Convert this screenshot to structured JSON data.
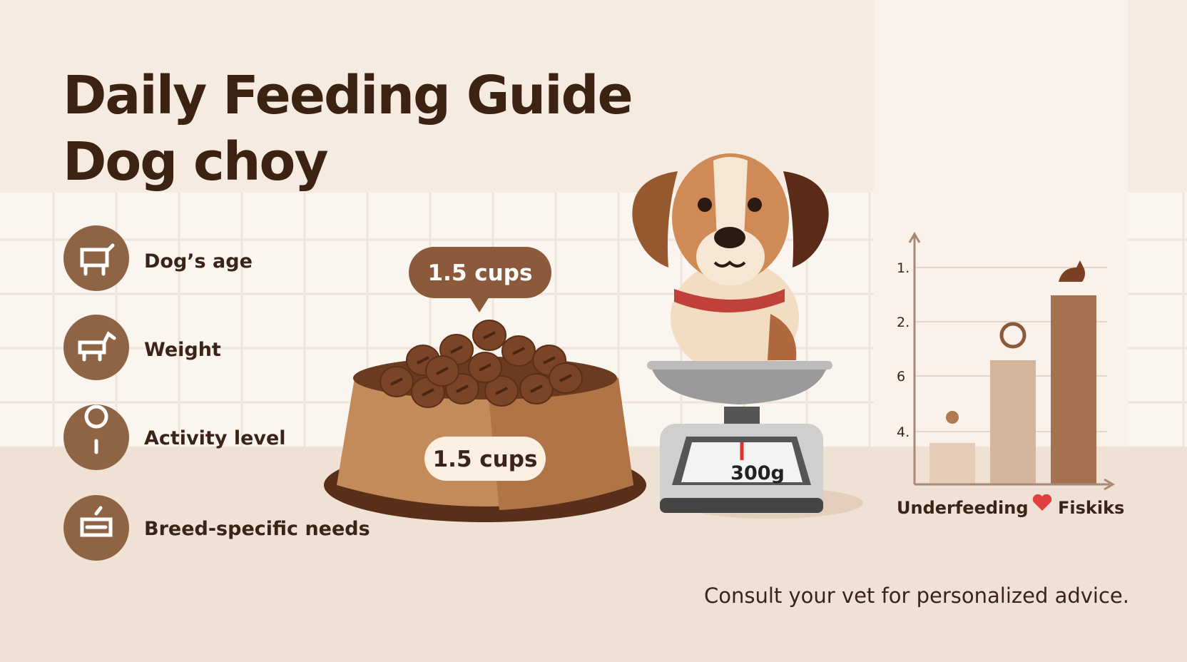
{
  "header": {
    "title": "Daily Feeding Guide",
    "subtitle": "Dog choy"
  },
  "factors": [
    "Dog’s age",
    "Weight",
    "Activity level",
    "Breed-specific needs"
  ],
  "portion_bubble": "1.5 cups",
  "bowl_label": "1.5 cups",
  "scale_reading": "300g",
  "mini_chart": {
    "axis_labels": [
      "1.",
      "2.",
      "6",
      "4."
    ],
    "legend": [
      "Underfeeding",
      "Fiskiks"
    ]
  },
  "footer": "Consult your vet for personalized advice."
}
